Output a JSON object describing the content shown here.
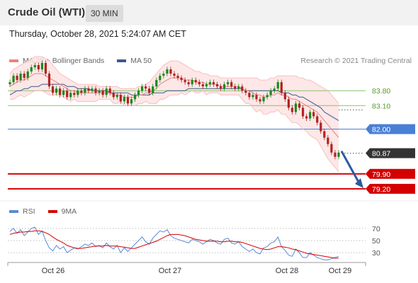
{
  "header": {
    "title": "Crude Oil (WTI)",
    "timeframe": "30 MIN",
    "datetime": "Thursday, October 28, 2021 5:24:07 AM CET"
  },
  "legend": {
    "ma20_label": "MA 20 + Bollinger Bands",
    "ma50_label": "MA 50",
    "credit": "Research © 2021 Trading Central",
    "rsi_label": "RSI",
    "rsi_ma_label": "9MA"
  },
  "colors": {
    "ma20": "#f08080",
    "ma50": "#3a5a8c",
    "band_fill": "#fde3e3",
    "bull": "#1a8a1a",
    "bear": "#b22222",
    "resistance": "#8cc26b",
    "pivot": "#4a7fd6",
    "support": "#d40000",
    "rsi": "#5b8ad6",
    "rsi_ma": "#d40000",
    "arrow": "#2c5aa0"
  },
  "chart_data": [
    {
      "type": "candlestick",
      "title": "Crude Oil (WTI)",
      "timeframe": "30 MIN",
      "x_ticks": [
        "Oct 26",
        "Oct 27",
        "Oct 28",
        "Oct 29"
      ],
      "ylim": [
        78.7,
        85.0
      ],
      "current_price": 80.87,
      "levels": [
        {
          "value": 83.8,
          "type": "resistance",
          "label": "83.80"
        },
        {
          "value": 83.1,
          "type": "resistance",
          "label": "83.10"
        },
        {
          "value": 82.0,
          "type": "pivot",
          "label": "82.00"
        },
        {
          "value": 79.9,
          "type": "support",
          "label": "79.90"
        },
        {
          "value": 79.2,
          "type": "support",
          "label": "79.20"
        }
      ],
      "current_label": "80.87",
      "close_series": [
        84.2,
        84.5,
        84.3,
        84.6,
        84.4,
        84.7,
        84.9,
        85.0,
        84.8,
        85.1,
        84.6,
        84.0,
        83.7,
        83.9,
        83.6,
        83.8,
        83.5,
        83.7,
        83.6,
        83.8,
        83.7,
        83.9,
        83.8,
        83.9,
        83.7,
        83.8,
        83.6,
        83.9,
        83.7,
        83.5,
        83.6,
        83.3,
        83.5,
        83.2,
        83.4,
        83.6,
        83.8,
        84.0,
        83.9,
        83.7,
        84.0,
        84.3,
        84.5,
        84.6,
        84.8,
        84.6,
        84.5,
        84.4,
        84.3,
        84.2,
        84.1,
        84.3,
        84.2,
        84.1,
        84.0,
        84.1,
        84.2,
        84.1,
        84.0,
        83.9,
        84.1,
        84.2,
        84.0,
        83.9,
        84.0,
        83.8,
        83.7,
        83.5,
        83.6,
        83.4,
        83.3,
        83.5,
        83.6,
        83.8,
        83.9,
        84.2,
        83.7,
        83.4,
        83.0,
        82.8,
        83.2,
        83.0,
        82.6,
        82.5,
        82.8,
        82.6,
        82.3,
        81.9,
        81.6,
        81.3,
        80.9,
        80.7,
        80.9
      ],
      "ma20": [
        84.0,
        84.1,
        84.2,
        84.3,
        84.3,
        84.4,
        84.5,
        84.6,
        84.6,
        84.6,
        84.5,
        84.4,
        84.3,
        84.2,
        84.1,
        84.0,
        83.9,
        83.8,
        83.8,
        83.7,
        83.7,
        83.7,
        83.7,
        83.7,
        83.7,
        83.7,
        83.7,
        83.7,
        83.7,
        83.6,
        83.6,
        83.6,
        83.5,
        83.5,
        83.5,
        83.5,
        83.6,
        83.6,
        83.7,
        83.7,
        83.8,
        83.9,
        84.1,
        84.2,
        84.3,
        84.4,
        84.4,
        84.4,
        84.4,
        84.3,
        84.3,
        84.3,
        84.2,
        84.2,
        84.2,
        84.1,
        84.1,
        84.1,
        84.1,
        84.0,
        84.0,
        84.0,
        84.0,
        84.0,
        84.0,
        83.9,
        83.8,
        83.8,
        83.7,
        83.6,
        83.6,
        83.5,
        83.5,
        83.6,
        83.6,
        83.7,
        83.6,
        83.6,
        83.5,
        83.4,
        83.4,
        83.3,
        83.2,
        83.1,
        83.0,
        82.9,
        82.8,
        82.6,
        82.4,
        82.2,
        82.0,
        81.8,
        81.6
      ],
      "bb_upper": [
        84.6,
        84.8,
        84.9,
        85.0,
        85.1,
        85.2,
        85.3,
        85.4,
        85.4,
        85.4,
        85.3,
        85.2,
        85.0,
        84.8,
        84.6,
        84.5,
        84.4,
        84.3,
        84.2,
        84.1,
        84.1,
        84.1,
        84.1,
        84.1,
        84.1,
        84.0,
        84.0,
        84.0,
        84.0,
        84.0,
        84.0,
        83.9,
        83.9,
        83.9,
        83.9,
        83.9,
        84.0,
        84.0,
        84.1,
        84.2,
        84.4,
        84.6,
        84.8,
        85.0,
        85.1,
        85.2,
        85.2,
        85.2,
        85.1,
        85.0,
        84.9,
        84.8,
        84.7,
        84.7,
        84.6,
        84.6,
        84.5,
        84.5,
        84.5,
        84.4,
        84.4,
        84.4,
        84.4,
        84.4,
        84.4,
        84.4,
        84.4,
        84.4,
        84.4,
        84.4,
        84.3,
        84.3,
        84.3,
        84.4,
        84.4,
        84.5,
        84.5,
        84.5,
        84.5,
        84.5,
        84.5,
        84.4,
        84.4,
        84.3,
        84.3,
        84.2,
        84.1,
        84.0,
        83.9,
        83.8,
        83.6,
        83.4,
        83.2
      ],
      "bb_lower": [
        83.4,
        83.4,
        83.5,
        83.6,
        83.5,
        83.6,
        83.7,
        83.8,
        83.8,
        83.8,
        83.7,
        83.6,
        83.6,
        83.6,
        83.6,
        83.5,
        83.4,
        83.3,
        83.4,
        83.3,
        83.3,
        83.3,
        83.3,
        83.3,
        83.3,
        83.4,
        83.4,
        83.4,
        83.4,
        83.2,
        83.2,
        83.3,
        83.1,
        83.1,
        83.1,
        83.1,
        83.2,
        83.2,
        83.3,
        83.2,
        83.2,
        83.2,
        83.4,
        83.4,
        83.5,
        83.6,
        83.6,
        83.6,
        83.7,
        83.6,
        83.7,
        83.8,
        83.7,
        83.7,
        83.8,
        83.6,
        83.7,
        83.7,
        83.7,
        83.6,
        83.6,
        83.6,
        83.6,
        83.6,
        83.6,
        83.4,
        83.2,
        83.2,
        83.0,
        82.8,
        82.9,
        82.7,
        82.7,
        82.8,
        82.8,
        82.9,
        82.7,
        82.7,
        82.5,
        82.3,
        82.3,
        82.2,
        82.0,
        81.9,
        81.7,
        81.6,
        81.5,
        81.2,
        80.9,
        80.6,
        80.4,
        80.2,
        80.0
      ],
      "ma50": [
        83.6,
        83.7,
        83.8,
        83.8,
        83.9,
        83.9,
        84.0,
        84.0,
        84.0,
        84.1,
        84.1,
        84.1,
        84.1,
        84.1,
        84.1,
        84.1,
        84.0,
        84.0,
        84.0,
        83.9,
        83.9,
        83.9,
        83.9,
        83.8,
        83.8,
        83.8,
        83.8,
        83.8,
        83.7,
        83.7,
        83.7,
        83.7,
        83.7,
        83.7,
        83.6,
        83.6,
        83.6,
        83.6,
        83.6,
        83.6,
        83.7,
        83.7,
        83.7,
        83.7,
        83.8,
        83.8,
        83.8,
        83.8,
        83.8,
        83.8,
        83.9,
        83.9,
        83.9,
        83.9,
        83.9,
        83.9,
        83.9,
        83.9,
        83.9,
        83.9,
        83.9,
        83.9,
        83.9,
        83.9,
        83.9,
        83.9,
        83.8,
        83.8,
        83.8,
        83.8,
        83.8,
        83.8,
        83.8,
        83.8,
        83.8,
        83.8,
        83.7,
        83.7,
        83.7,
        83.6,
        83.6,
        83.5,
        83.5,
        83.4,
        83.3,
        83.2,
        83.1,
        83.0,
        82.8,
        82.7,
        82.6,
        82.5,
        82.4
      ]
    },
    {
      "type": "line",
      "title": "RSI",
      "ylim": [
        15,
        85
      ],
      "y_ticks": [
        70,
        50,
        30
      ],
      "rsi": [
        65,
        70,
        62,
        68,
        58,
        64,
        70,
        72,
        60,
        66,
        50,
        38,
        33,
        42,
        36,
        40,
        30,
        34,
        38,
        36,
        40,
        44,
        42,
        46,
        40,
        42,
        38,
        46,
        40,
        36,
        42,
        30,
        38,
        32,
        38,
        44,
        50,
        56,
        48,
        44,
        54,
        60,
        66,
        64,
        68,
        58,
        54,
        52,
        50,
        48,
        46,
        52,
        50,
        48,
        44,
        48,
        52,
        50,
        46,
        44,
        52,
        54,
        46,
        44,
        48,
        40,
        36,
        32,
        36,
        30,
        28,
        38,
        40,
        46,
        48,
        56,
        40,
        34,
        26,
        24,
        36,
        30,
        22,
        22,
        30,
        26,
        22,
        20,
        18,
        18,
        20,
        22,
        24
      ],
      "rsi_ma": [
        60,
        62,
        63,
        64,
        64,
        65,
        65,
        66,
        66,
        65,
        63,
        60,
        56,
        52,
        49,
        46,
        42,
        40,
        38,
        37,
        37,
        38,
        39,
        40,
        41,
        41,
        41,
        42,
        41,
        41,
        41,
        40,
        39,
        38,
        37,
        37,
        39,
        41,
        43,
        45,
        47,
        49,
        52,
        55,
        58,
        60,
        60,
        60,
        59,
        58,
        56,
        54,
        52,
        51,
        50,
        49,
        49,
        49,
        49,
        48,
        48,
        49,
        49,
        48,
        48,
        47,
        45,
        43,
        41,
        39,
        37,
        36,
        35,
        36,
        38,
        40,
        40,
        39,
        38,
        36,
        35,
        33,
        31,
        29,
        28,
        27,
        26,
        25,
        24,
        23,
        22,
        21,
        21
      ]
    }
  ]
}
